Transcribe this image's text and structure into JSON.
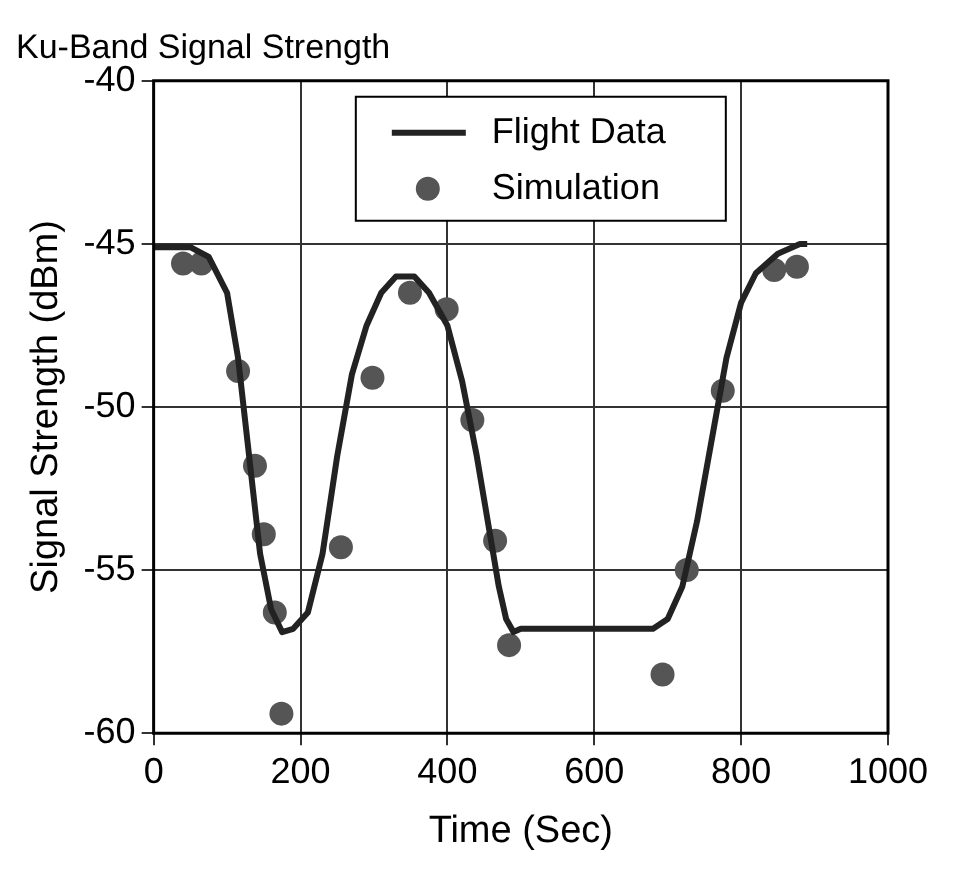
{
  "chart_data": {
    "type": "line",
    "title": "Ku-Band Signal Strength",
    "xlabel": "Time (Sec)",
    "ylabel": "Signal Strength (dBm)",
    "xlim": [
      0,
      1000
    ],
    "xticks": [
      0,
      200,
      400,
      600,
      800,
      1000
    ],
    "ylim": [
      -60,
      -40
    ],
    "yticks": [
      -60,
      -55,
      -50,
      -45,
      -40
    ],
    "grid": true,
    "legend": "top",
    "series": [
      {
        "name": "Flight Data",
        "color": "#222222",
        "marker": "none",
        "line_style": "solid",
        "x": [
          0,
          50,
          75,
          100,
          115,
          130,
          145,
          160,
          175,
          190,
          210,
          230,
          250,
          270,
          290,
          310,
          330,
          355,
          375,
          400,
          420,
          440,
          455,
          470,
          480,
          490,
          500,
          600,
          680,
          700,
          720,
          740,
          760,
          780,
          800,
          820,
          850,
          880,
          890
        ],
        "values": [
          -45.1,
          -45.1,
          -45.4,
          -46.5,
          -48.5,
          -51.5,
          -54.5,
          -56.2,
          -56.9,
          -56.8,
          -56.3,
          -54.5,
          -51.5,
          -49,
          -47.5,
          -46.5,
          -46,
          -46,
          -46.5,
          -47.5,
          -49.2,
          -51.5,
          -53.5,
          -55.5,
          -56.5,
          -56.9,
          -56.8,
          -56.8,
          -56.8,
          -56.5,
          -55.5,
          -53.5,
          -51,
          -48.5,
          -46.8,
          -45.9,
          -45.3,
          -45,
          -45
        ]
      },
      {
        "name": "Simulation",
        "type": "scatter",
        "color": "#555555",
        "marker": "circle",
        "x": [
          40,
          65,
          115,
          138,
          150,
          165,
          174,
          255,
          298,
          349,
          399,
          434,
          465,
          484,
          693,
          726,
          775,
          845,
          876
        ],
        "values": [
          -45.6,
          -45.6,
          -48.9,
          -51.8,
          -53.9,
          -56.3,
          -59.4,
          -54.3,
          -49.1,
          -46.5,
          -47,
          -50.4,
          -54.1,
          -57.3,
          -58.2,
          -55,
          -49.5,
          -45.8,
          -45.7
        ]
      }
    ]
  }
}
